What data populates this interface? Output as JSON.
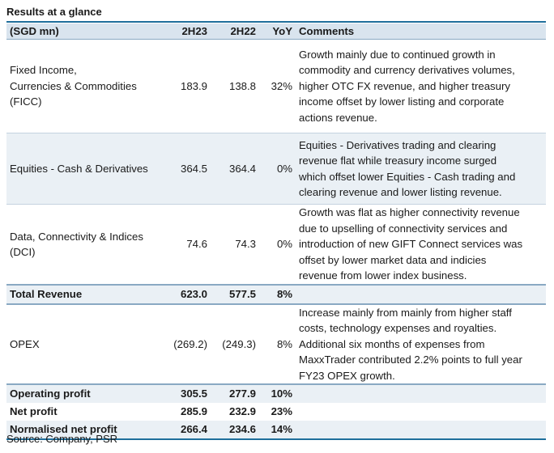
{
  "title": "Results at a glance",
  "header": {
    "label": "(SGD mn)",
    "col1": "2H23",
    "col2": "2H22",
    "col3": "YoY",
    "col4": "Comments"
  },
  "rows": [
    {
      "label_lines": [
        "Fixed Income,",
        "Currencies & Commodities",
        "(FICC)"
      ],
      "v1": "183.9",
      "v2": "138.8",
      "yoy": "32%",
      "comment_lines": [
        "Growth mainly due to continued growth in",
        "commodity and currency derivatives volumes,",
        "higher OTC FX revenue, and higher treasury",
        "income offset by lower listing and corporate",
        "actions revenue."
      ]
    },
    {
      "label_lines": [
        "Equities - Cash & Derivatives"
      ],
      "v1": "364.5",
      "v2": "364.4",
      "yoy": "0%",
      "comment_lines": [
        "Equities - Derivatives trading and clearing",
        "revenue flat while treasury income surged",
        "which offset lower Equities - Cash trading and",
        "clearing revenue and lower listing revenue."
      ]
    },
    {
      "label_lines": [
        "Data, Connectivity & Indices",
        "(DCI)"
      ],
      "v1": "74.6",
      "v2": "74.3",
      "yoy": "0%",
      "comment_lines": [
        "Growth was flat as higher connectivity revenue",
        "due to upselling of connectivity services and",
        "introduction of new GIFT Connect services was",
        "offset by lower market data and indicies",
        "revenue from lower index business."
      ]
    },
    {
      "label_lines": [
        "Total Revenue"
      ],
      "v1": "623.0",
      "v2": "577.5",
      "yoy": "8%",
      "comment_lines": []
    },
    {
      "label_lines": [
        "OPEX"
      ],
      "v1": "(269.2)",
      "v2": "(249.3)",
      "yoy": "8%",
      "comment_lines": [
        "Increase mainly from mainly from higher staff",
        "costs, technology expenses and royalties.",
        "Additional six months of expenses from",
        "MaxxTrader contributed 2.2% points to full year",
        "FY23 OPEX growth."
      ]
    },
    {
      "label_lines": [
        "Operating profit"
      ],
      "v1": "305.5",
      "v2": "277.9",
      "yoy": "10%",
      "comment_lines": []
    },
    {
      "label_lines": [
        "Net profit"
      ],
      "v1": "285.9",
      "v2": "232.9",
      "yoy": "23%",
      "comment_lines": []
    },
    {
      "label_lines": [
        "Normalised net profit"
      ],
      "v1": "266.4",
      "v2": "234.6",
      "yoy": "14%",
      "comment_lines": []
    }
  ],
  "source": "Source: Company, PSR"
}
